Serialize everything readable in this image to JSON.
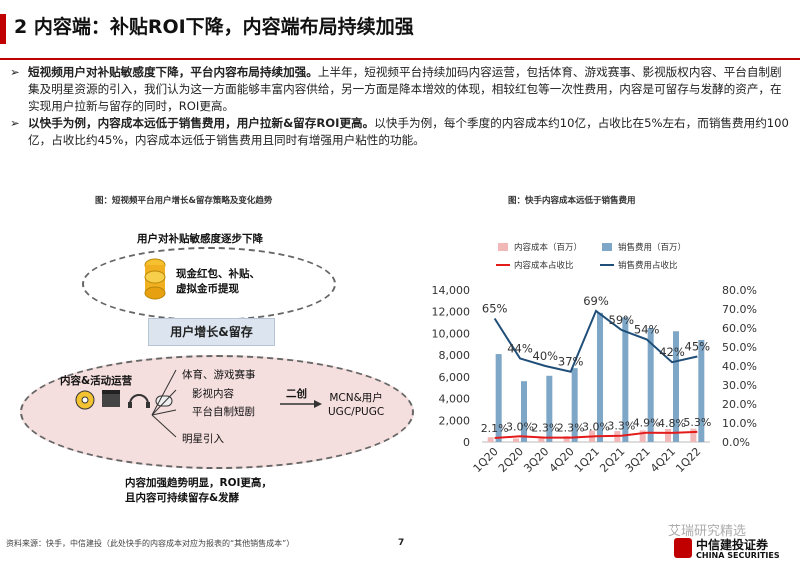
{
  "title": "2 内容端：补贴ROI下降，内容端布局持续加强",
  "bullets": [
    {
      "mark": "➢",
      "bold": "短视频用户对补贴敏感度下降，平台内容布局持续加强。",
      "text": "上半年，短视频平台持续加码内容运营，包括体育、游戏赛事、影视版权内容、平台自制剧集及明星资源的引入，我们认为这一方面能够丰富内容供给，另一方面是降本增效的体现，相较红包等一次性费用，内容是可留存与发酵的资产，在实现用户拉新与留存的同时，ROI更高。"
    },
    {
      "mark": "➢",
      "bold": "以快手为例，内容成本远低于销售费用，用户拉新&留存ROI更高。",
      "text": "以快手为例，每个季度的内容成本约10亿，占收比在5%左右，而销售费用约100亿，占收比约45%，内容成本远低于销售费用且同时有增强用户粘性的功能。"
    }
  ],
  "left_figure": {
    "caption": "图：短视频平台用户增长&留存策略及变化趋势",
    "top_label": "用户对补贴敏感度逐步下降",
    "ellipse1_text": "现金红包、补贴、\n虚拟金币提现",
    "center_box": "用户增长&留存",
    "ops_label": "内容&活动运营",
    "items": [
      "体育、游戏赛事",
      "影视内容",
      "平台自制短剧",
      "明星引入"
    ],
    "arrow_label": "二创",
    "result": "MCN&用户\nUGC/PUGC",
    "bottom_text_1": "内容加强趋势明显，ROI更高，",
    "bottom_text_2": "且内容可持续留存&发酵"
  },
  "chart_caption": "图：快手内容成本远低于销售费用",
  "chart_data": {
    "type": "bar",
    "categories": [
      "1Q20",
      "2Q20",
      "3Q20",
      "4Q20",
      "1Q21",
      "2Q21",
      "3Q21",
      "4Q21",
      "1Q22"
    ],
    "series": [
      {
        "name": "内容成本（百万）",
        "kind": "bar",
        "axis": "left",
        "color": "#f2b8b8",
        "values": [
          440,
          330,
          370,
          540,
          1050,
          1010,
          1070,
          1200,
          1230
        ]
      },
      {
        "name": "销售费用（百万）",
        "kind": "bar",
        "axis": "left",
        "color": "#7ea6c6",
        "values": [
          8100,
          5600,
          6100,
          6800,
          11900,
          11500,
          10500,
          10200,
          9400
        ]
      },
      {
        "name": "内容成本占收比",
        "kind": "line",
        "axis": "right",
        "color": "#e31b1b",
        "values": [
          2.1,
          3.0,
          2.3,
          2.3,
          3.0,
          3.3,
          4.9,
          4.8,
          5.3
        ]
      },
      {
        "name": "销售费用占收比",
        "kind": "line",
        "axis": "right",
        "color": "#1f4e79",
        "values": [
          65,
          44,
          40,
          37,
          69,
          59,
          54,
          42,
          45
        ]
      }
    ],
    "bar_labels": [
      "2.1%",
      "3.0%",
      "2.3%",
      "2.3%",
      "3.0%",
      "3.3%",
      "4.9%",
      "4.8%",
      "5.3%"
    ],
    "line_labels": [
      "65%",
      "44%",
      "40%",
      "37%",
      "69%",
      "59%",
      "54%",
      "42%",
      "45%"
    ],
    "ylim_left": [
      0,
      14000
    ],
    "yticks_left": [
      "0",
      "2,000",
      "4,000",
      "6,000",
      "8,000",
      "10,000",
      "12,000",
      "14,000"
    ],
    "ylim_right": [
      0,
      80
    ],
    "yticks_right": [
      "0.0%",
      "10.0%",
      "20.0%",
      "30.0%",
      "40.0%",
      "50.0%",
      "60.0%",
      "70.0%",
      "80.0%"
    ],
    "legend_position": "top"
  },
  "source": "资料来源：快手，中信建投（此处快手的内容成本对应为报表的“其他销售成本”）",
  "page_number": "7",
  "logo": {
    "watermark": "艾瑞研究精选",
    "cn": "中信建投证券",
    "en": "CHINA SECURITIES"
  },
  "colors": {
    "accent": "#c00000"
  }
}
